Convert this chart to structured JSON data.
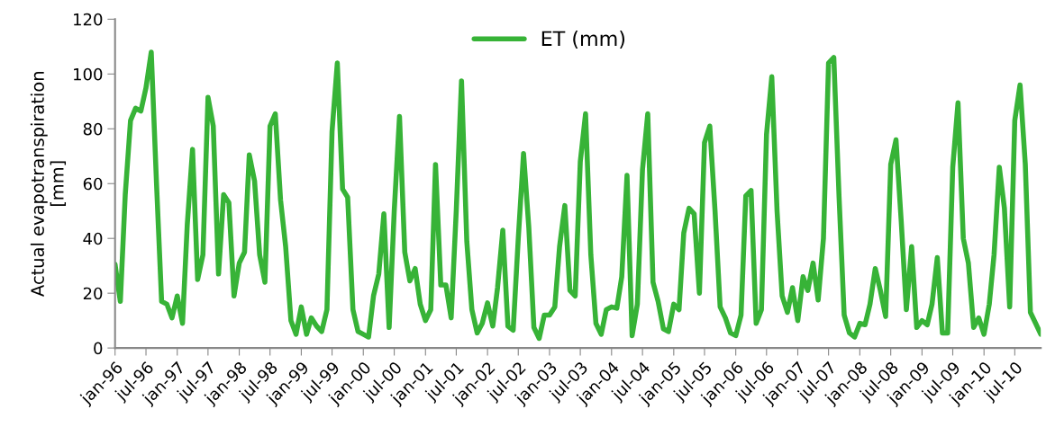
{
  "chart_data": {
    "type": "line",
    "ylabel": "Actual evapotranspiration\n[mm]",
    "x": [
      "1996-01",
      "1996-02",
      "1996-03",
      "1996-04",
      "1996-05",
      "1996-06",
      "1996-07",
      "1996-08",
      "1996-09",
      "1996-10",
      "1996-11",
      "1996-12",
      "1997-01",
      "1997-02",
      "1997-03",
      "1997-04",
      "1997-05",
      "1997-06",
      "1997-07",
      "1997-08",
      "1997-09",
      "1997-10",
      "1997-11",
      "1997-12",
      "1998-01",
      "1998-02",
      "1998-03",
      "1998-04",
      "1998-05",
      "1998-06",
      "1998-07",
      "1998-08",
      "1998-09",
      "1998-10",
      "1998-11",
      "1998-12",
      "1999-01",
      "1999-02",
      "1999-03",
      "1999-04",
      "1999-05",
      "1999-06",
      "1999-07",
      "1999-08",
      "1999-09",
      "1999-10",
      "1999-11",
      "1999-12",
      "2000-01",
      "2000-02",
      "2000-03",
      "2000-04",
      "2000-05",
      "2000-06",
      "2000-07",
      "2000-08",
      "2000-09",
      "2000-10",
      "2000-11",
      "2000-12",
      "2001-01",
      "2001-02",
      "2001-03",
      "2001-04",
      "2001-05",
      "2001-06",
      "2001-07",
      "2001-08",
      "2001-09",
      "2001-10",
      "2001-11",
      "2001-12",
      "2002-01",
      "2002-02",
      "2002-03",
      "2002-04",
      "2002-05",
      "2002-06",
      "2002-07",
      "2002-08",
      "2002-09",
      "2002-10",
      "2002-11",
      "2002-12",
      "2003-01",
      "2003-02",
      "2003-03",
      "2003-04",
      "2003-05",
      "2003-06",
      "2003-07",
      "2003-08",
      "2003-09",
      "2003-10",
      "2003-11",
      "2003-12",
      "2004-01",
      "2004-02",
      "2004-03",
      "2004-04",
      "2004-05",
      "2004-06",
      "2004-07",
      "2004-08",
      "2004-09",
      "2004-10",
      "2004-11",
      "2004-12",
      "2005-01",
      "2005-02",
      "2005-03",
      "2005-04",
      "2005-05",
      "2005-06",
      "2005-07",
      "2005-08",
      "2005-09",
      "2005-10",
      "2005-11",
      "2005-12",
      "2006-01",
      "2006-02",
      "2006-03",
      "2006-04",
      "2006-05",
      "2006-06",
      "2006-07",
      "2006-08",
      "2006-09",
      "2006-10",
      "2006-11",
      "2006-12",
      "2007-01",
      "2007-02",
      "2007-03",
      "2007-04",
      "2007-05",
      "2007-06",
      "2007-07",
      "2007-08",
      "2007-09",
      "2007-10",
      "2007-11",
      "2007-12",
      "2008-01",
      "2008-02",
      "2008-03",
      "2008-04",
      "2008-05",
      "2008-06",
      "2008-07",
      "2008-08",
      "2008-09",
      "2008-10",
      "2008-11",
      "2008-12",
      "2009-01",
      "2009-02",
      "2009-03",
      "2009-04",
      "2009-05",
      "2009-06",
      "2009-07",
      "2009-08",
      "2009-09",
      "2009-10",
      "2009-11",
      "2009-12",
      "2010-01",
      "2010-02",
      "2010-03",
      "2010-04",
      "2010-05",
      "2010-06",
      "2010-07",
      "2010-08",
      "2010-09",
      "2010-10",
      "2010-11",
      "2010-12"
    ],
    "series": [
      {
        "name": "ET (mm)",
        "color": "#37b337",
        "values": [
          30.5,
          17,
          56,
          83,
          87.5,
          86.5,
          95,
          108,
          60,
          17,
          16,
          11,
          19,
          9,
          45,
          72.5,
          25,
          34,
          91.5,
          81,
          27,
          56,
          53,
          19,
          31,
          35,
          70.5,
          61,
          34,
          24,
          81,
          85.5,
          54,
          37,
          10,
          5,
          15,
          5,
          11,
          8,
          6,
          14,
          79,
          104,
          58,
          55,
          14,
          6,
          5,
          4,
          19,
          27,
          49,
          7.5,
          50,
          84.5,
          35,
          24.5,
          29,
          16,
          10,
          14,
          67,
          23,
          23,
          11,
          50,
          97.5,
          39,
          14,
          5.5,
          9,
          16.5,
          8,
          22,
          43,
          8,
          6.5,
          40,
          71,
          44,
          7.5,
          3.5,
          12,
          12,
          15,
          37,
          52,
          21,
          19,
          68,
          85.5,
          34,
          9,
          5,
          14,
          15,
          14.5,
          26,
          63,
          4.5,
          16,
          65,
          85.5,
          24,
          17,
          7,
          6,
          16,
          14,
          42,
          51,
          49,
          20,
          75,
          81,
          50,
          15,
          11,
          5.5,
          4.5,
          12,
          55.5,
          57.5,
          9,
          14,
          78,
          99,
          50,
          19,
          13,
          22,
          10,
          26,
          21,
          31,
          17.5,
          40,
          104,
          106,
          55,
          12,
          5.5,
          4,
          9,
          8.5,
          16,
          29,
          21,
          11.5,
          67,
          76,
          46,
          14,
          37,
          7.5,
          10,
          8.5,
          16,
          33,
          5.5,
          5.5,
          66,
          89.5,
          40,
          31,
          7.5,
          11,
          5,
          16,
          34,
          66,
          51,
          15,
          83,
          96,
          67,
          13,
          9,
          5
        ]
      }
    ],
    "xlim": [
      "1996-01",
      "2010-12"
    ],
    "xticks": [
      {
        "value": "1996-01",
        "label": "jan-96"
      },
      {
        "value": "1996-07",
        "label": "jul-96"
      },
      {
        "value": "1997-01",
        "label": "jan-97"
      },
      {
        "value": "1997-07",
        "label": "jul-97"
      },
      {
        "value": "1998-01",
        "label": "jan-98"
      },
      {
        "value": "1998-07",
        "label": "jul-98"
      },
      {
        "value": "1999-01",
        "label": "jan-99"
      },
      {
        "value": "1999-07",
        "label": "jul-99"
      },
      {
        "value": "2000-01",
        "label": "jan-00"
      },
      {
        "value": "2000-07",
        "label": "jul-00"
      },
      {
        "value": "2001-01",
        "label": "jan-01"
      },
      {
        "value": "2001-07",
        "label": "jul-01"
      },
      {
        "value": "2002-01",
        "label": "jan-02"
      },
      {
        "value": "2002-07",
        "label": "jul-02"
      },
      {
        "value": "2003-01",
        "label": "jan-03"
      },
      {
        "value": "2003-07",
        "label": "jul-03"
      },
      {
        "value": "2004-01",
        "label": "jan-04"
      },
      {
        "value": "2004-07",
        "label": "jul-04"
      },
      {
        "value": "2005-01",
        "label": "jan-05"
      },
      {
        "value": "2005-07",
        "label": "jul-05"
      },
      {
        "value": "2006-01",
        "label": "jan-06"
      },
      {
        "value": "2006-07",
        "label": "jul-06"
      },
      {
        "value": "2007-01",
        "label": "jan-07"
      },
      {
        "value": "2007-07",
        "label": "jul-07"
      },
      {
        "value": "2008-01",
        "label": "jan-08"
      },
      {
        "value": "2008-07",
        "label": "jul-08"
      },
      {
        "value": "2009-01",
        "label": "jan-09"
      },
      {
        "value": "2009-07",
        "label": "jul-09"
      },
      {
        "value": "2010-01",
        "label": "jan-10"
      },
      {
        "value": "2010-07",
        "label": "jul-10"
      }
    ],
    "ylim": [
      0,
      120
    ],
    "yticks": [
      0,
      20,
      40,
      60,
      80,
      100,
      120
    ],
    "grid": false,
    "legend": "top",
    "line_style": "solid",
    "marker": "none"
  }
}
